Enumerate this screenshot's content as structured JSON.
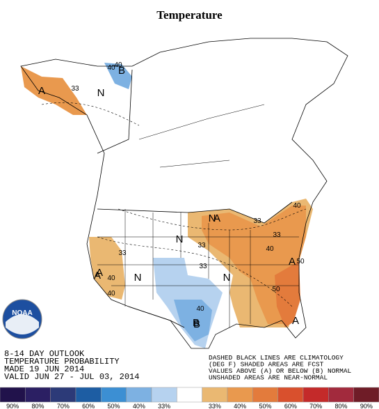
{
  "title": "Temperature",
  "map": {
    "labels": [
      "A",
      "B",
      "N",
      "33",
      "40",
      "40",
      "33",
      "N",
      "A",
      "33",
      "40",
      "A",
      "N",
      "33",
      "N",
      "N",
      "A",
      "33",
      "40",
      "40",
      "50",
      "40",
      "50",
      "A",
      "A",
      "33",
      "B",
      "40",
      "B"
    ],
    "logo": "NOAA",
    "outlook": [
      "8-14 DAY OUTLOOK",
      "TEMPERATURE PROBABILITY",
      "MADE  19 JUN 2014",
      "VALID  JUN 27 - JUL 03, 2014"
    ],
    "notes": [
      "DASHED BLACK LINES ARE CLIMATOLOGY",
      "(DEG F) SHADED AREAS ARE FCST",
      "VALUES ABOVE (A) OR BELOW (B) NORMAL",
      "UNSHADED AREAS ARE NEAR-NORMAL"
    ]
  },
  "legend": [
    {
      "color": "#21124b",
      "label": "90%"
    },
    {
      "color": "#2b1f63",
      "label": "80%"
    },
    {
      "color": "#2c3a78",
      "label": "70%"
    },
    {
      "color": "#1d5da3",
      "label": "60%"
    },
    {
      "color": "#3c8fd3",
      "label": "50%"
    },
    {
      "color": "#7db1e2",
      "label": "40%"
    },
    {
      "color": "#b6d2ef",
      "label": "33%"
    },
    {
      "color": "#ffffff"
    },
    {
      "color": "#eab872",
      "label": "33%"
    },
    {
      "color": "#e9994e",
      "label": "40%"
    },
    {
      "color": "#e37b3c",
      "label": "50%"
    },
    {
      "color": "#d9502d",
      "label": "60%"
    },
    {
      "color": "#c42a2a",
      "label": "70%"
    },
    {
      "color": "#a22a3d",
      "label": "80%"
    },
    {
      "color": "#6f1c27",
      "label": "90%"
    }
  ]
}
